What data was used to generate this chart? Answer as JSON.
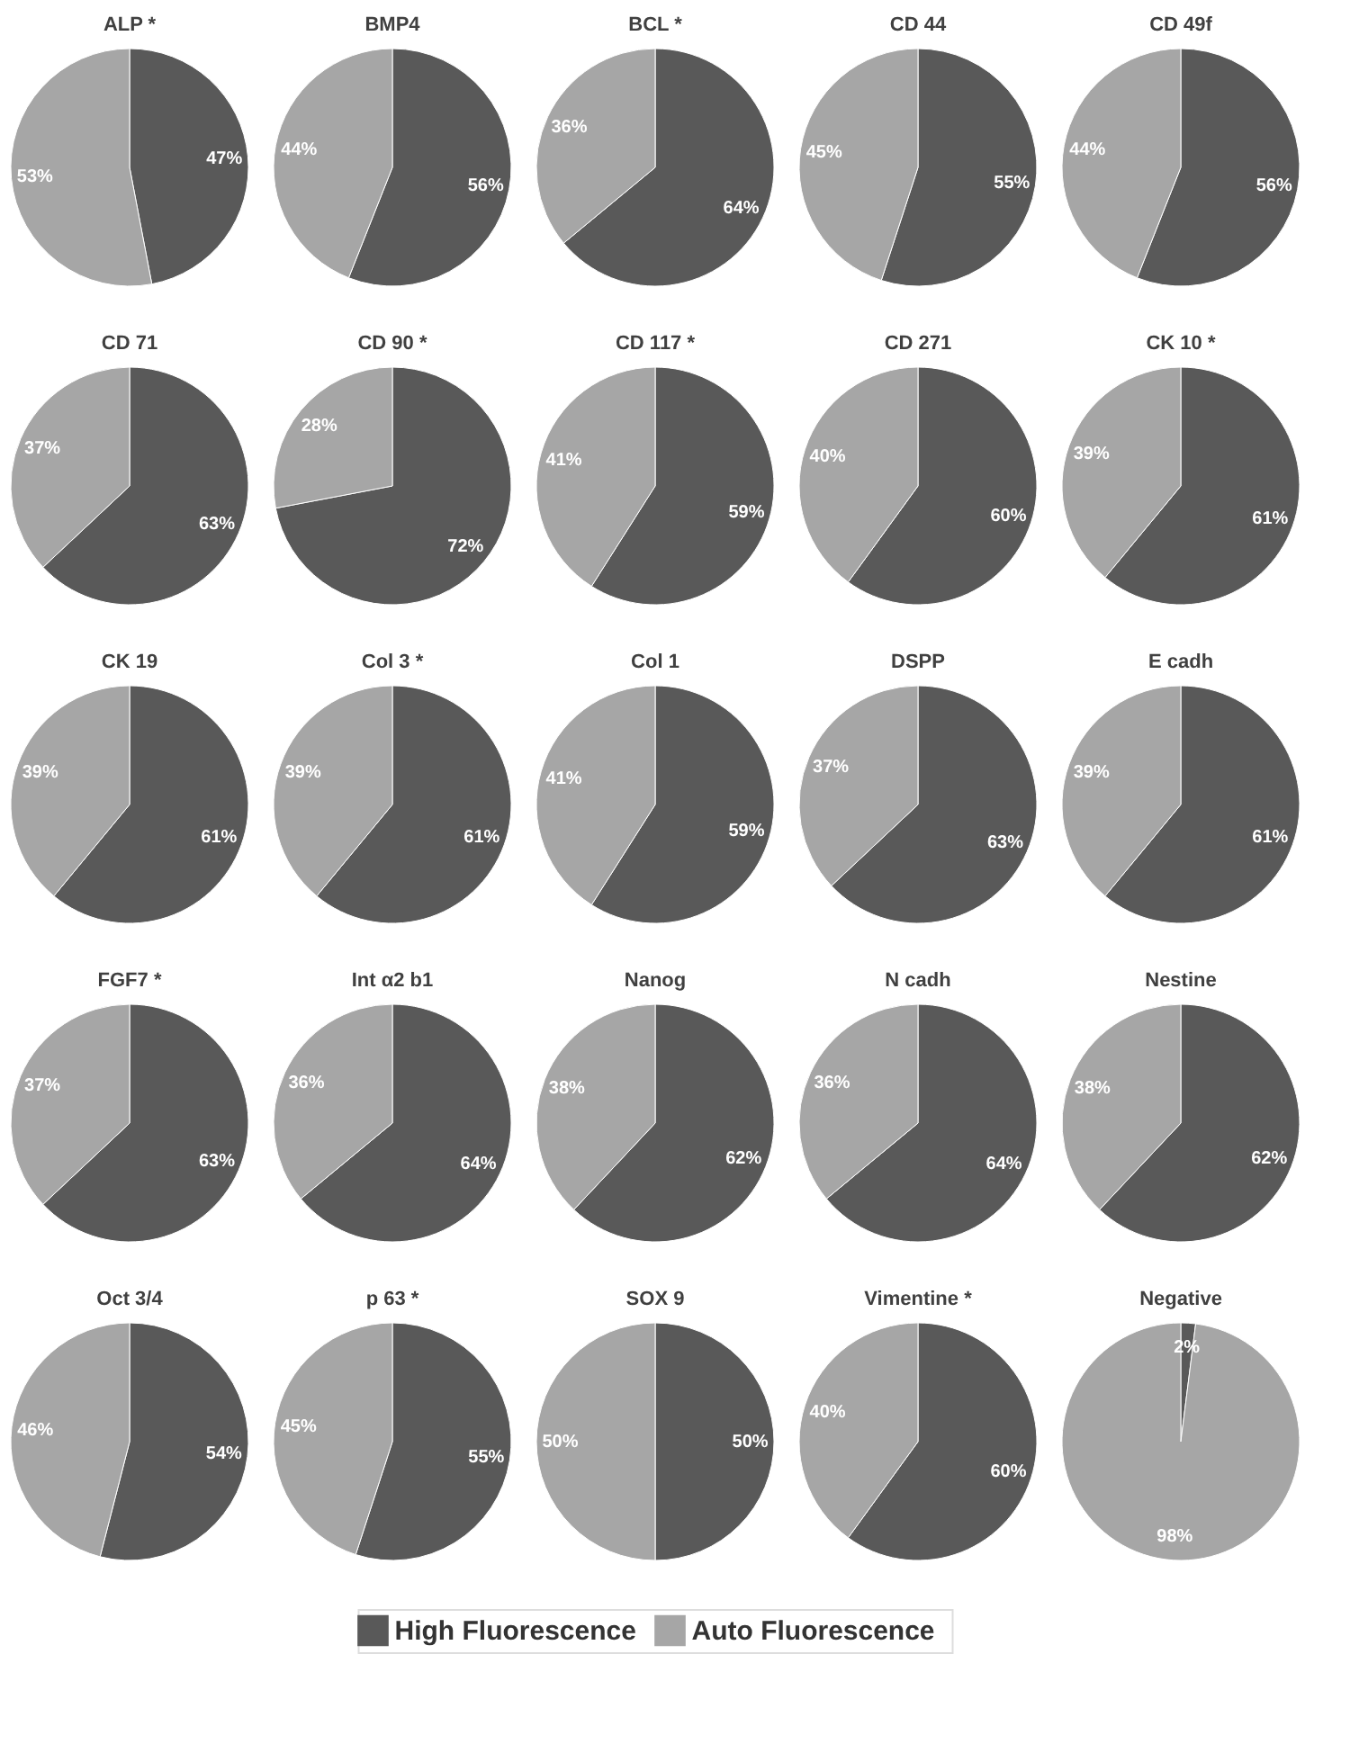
{
  "chart_data": [
    {
      "type": "pie",
      "title": "ALP *",
      "categories": [
        "High Fluorescence",
        "Auto Fluorescence"
      ],
      "values": [
        47,
        53
      ],
      "value_labels": [
        "47%",
        "53%"
      ],
      "colors": [
        "#595959",
        "#a6a6a6"
      ],
      "legend": "bottom"
    },
    {
      "type": "pie",
      "title": "BMP4",
      "categories": [
        null,
        null
      ],
      "values": [
        56,
        44
      ],
      "value_labels": [
        "56%",
        "44%"
      ],
      "colors": [
        "#595959",
        "#a6a6a6"
      ]
    },
    {
      "type": "pie",
      "title": "BCL *",
      "categories": [
        null,
        null
      ],
      "values": [
        64,
        36
      ],
      "value_labels": [
        "64%",
        "36%"
      ],
      "colors": [
        "#595959",
        "#a6a6a6"
      ]
    },
    {
      "type": "pie",
      "title": "CD 44",
      "categories": [
        null,
        null
      ],
      "values": [
        55,
        45
      ],
      "value_labels": [
        "55%",
        "45%"
      ],
      "colors": [
        "#595959",
        "#a6a6a6"
      ]
    },
    {
      "type": "pie",
      "title": "CD 49f",
      "categories": [
        null,
        null
      ],
      "values": [
        56,
        44
      ],
      "value_labels": [
        "56%",
        "44%"
      ],
      "colors": [
        "#595959",
        "#a6a6a6"
      ]
    },
    {
      "type": "pie",
      "title": "CD 71",
      "categories": [
        null,
        null
      ],
      "values": [
        63,
        37
      ],
      "value_labels": [
        "63%",
        "37%"
      ],
      "colors": [
        "#595959",
        "#a6a6a6"
      ]
    },
    {
      "type": "pie",
      "title": "CD 90 *",
      "categories": [
        null,
        null
      ],
      "values": [
        72,
        28
      ],
      "value_labels": [
        "72%",
        "28%"
      ],
      "colors": [
        "#595959",
        "#a6a6a6"
      ]
    },
    {
      "type": "pie",
      "title": "CD 117 *",
      "categories": [
        null,
        null
      ],
      "values": [
        59,
        41
      ],
      "value_labels": [
        "59%",
        "41%"
      ],
      "colors": [
        "#595959",
        "#a6a6a6"
      ]
    },
    {
      "type": "pie",
      "title": "CD 271",
      "categories": [
        null,
        null
      ],
      "values": [
        60,
        40
      ],
      "value_labels": [
        "60%",
        "40%"
      ],
      "colors": [
        "#595959",
        "#a6a6a6"
      ]
    },
    {
      "type": "pie",
      "title": "CK 10 *",
      "categories": [
        null,
        null
      ],
      "values": [
        61,
        39
      ],
      "value_labels": [
        "61%",
        "39%"
      ],
      "colors": [
        "#595959",
        "#a6a6a6"
      ]
    },
    {
      "type": "pie",
      "title": "CK 19",
      "categories": [
        null,
        null
      ],
      "values": [
        61,
        39
      ],
      "value_labels": [
        "61%",
        "39%"
      ],
      "colors": [
        "#595959",
        "#a6a6a6"
      ]
    },
    {
      "type": "pie",
      "title": "Col 3 *",
      "categories": [
        null,
        null
      ],
      "values": [
        61,
        39
      ],
      "value_labels": [
        "61%",
        "39%"
      ],
      "colors": [
        "#595959",
        "#a6a6a6"
      ]
    },
    {
      "type": "pie",
      "title": "Col 1",
      "categories": [
        null,
        null
      ],
      "values": [
        59,
        41
      ],
      "value_labels": [
        "59%",
        "41%"
      ],
      "colors": [
        "#595959",
        "#a6a6a6"
      ]
    },
    {
      "type": "pie",
      "title": "DSPP",
      "categories": [
        null,
        null
      ],
      "values": [
        63,
        37
      ],
      "value_labels": [
        "63%",
        "37%"
      ],
      "colors": [
        "#595959",
        "#a6a6a6"
      ]
    },
    {
      "type": "pie",
      "title": "E cadh",
      "categories": [
        null,
        null
      ],
      "values": [
        61,
        39
      ],
      "value_labels": [
        "61%",
        "39%"
      ],
      "colors": [
        "#595959",
        "#a6a6a6"
      ]
    },
    {
      "type": "pie",
      "title": "FGF7 *",
      "categories": [
        null,
        null
      ],
      "values": [
        63,
        37
      ],
      "value_labels": [
        "63%",
        "37%"
      ],
      "colors": [
        "#595959",
        "#a6a6a6"
      ]
    },
    {
      "type": "pie",
      "title": "Int α2 b1",
      "categories": [
        null,
        null
      ],
      "values": [
        64,
        36
      ],
      "value_labels": [
        "64%",
        "36%"
      ],
      "colors": [
        "#595959",
        "#a6a6a6"
      ]
    },
    {
      "type": "pie",
      "title": "Nanog",
      "categories": [
        null,
        null
      ],
      "values": [
        62,
        38
      ],
      "value_labels": [
        "62%",
        "38%"
      ],
      "colors": [
        "#595959",
        "#a6a6a6"
      ]
    },
    {
      "type": "pie",
      "title": "N cadh",
      "categories": [
        null,
        null
      ],
      "values": [
        64,
        36
      ],
      "value_labels": [
        "64%",
        "36%"
      ],
      "colors": [
        "#595959",
        "#a6a6a6"
      ]
    },
    {
      "type": "pie",
      "title": "Nestine",
      "categories": [
        null,
        null
      ],
      "values": [
        62,
        38
      ],
      "value_labels": [
        "62%",
        "38%"
      ],
      "colors": [
        "#595959",
        "#a6a6a6"
      ]
    },
    {
      "type": "pie",
      "title": "Oct 3/4",
      "categories": [
        null,
        null
      ],
      "values": [
        54,
        46
      ],
      "value_labels": [
        "54%",
        "46%"
      ],
      "colors": [
        "#595959",
        "#a6a6a6"
      ]
    },
    {
      "type": "pie",
      "title": "p 63 *",
      "categories": [
        null,
        null
      ],
      "values": [
        55,
        45
      ],
      "value_labels": [
        "55%",
        "45%"
      ],
      "colors": [
        "#595959",
        "#a6a6a6"
      ]
    },
    {
      "type": "pie",
      "title": "SOX 9",
      "categories": [
        null,
        null
      ],
      "values": [
        50,
        50
      ],
      "value_labels": [
        "50%",
        "50%"
      ],
      "colors": [
        "#595959",
        "#a6a6a6"
      ]
    },
    {
      "type": "pie",
      "title": "Vimentine *",
      "categories": [
        null,
        null
      ],
      "values": [
        60,
        40
      ],
      "value_labels": [
        "60%",
        "40%"
      ],
      "colors": [
        "#595959",
        "#a6a6a6"
      ]
    },
    {
      "type": "pie",
      "title": "Negative",
      "categories": [
        null,
        null
      ],
      "values": [
        2,
        98
      ],
      "value_labels": [
        "2%",
        "98%"
      ],
      "colors": [
        "#595959",
        "#a6a6a6"
      ]
    }
  ]
}
